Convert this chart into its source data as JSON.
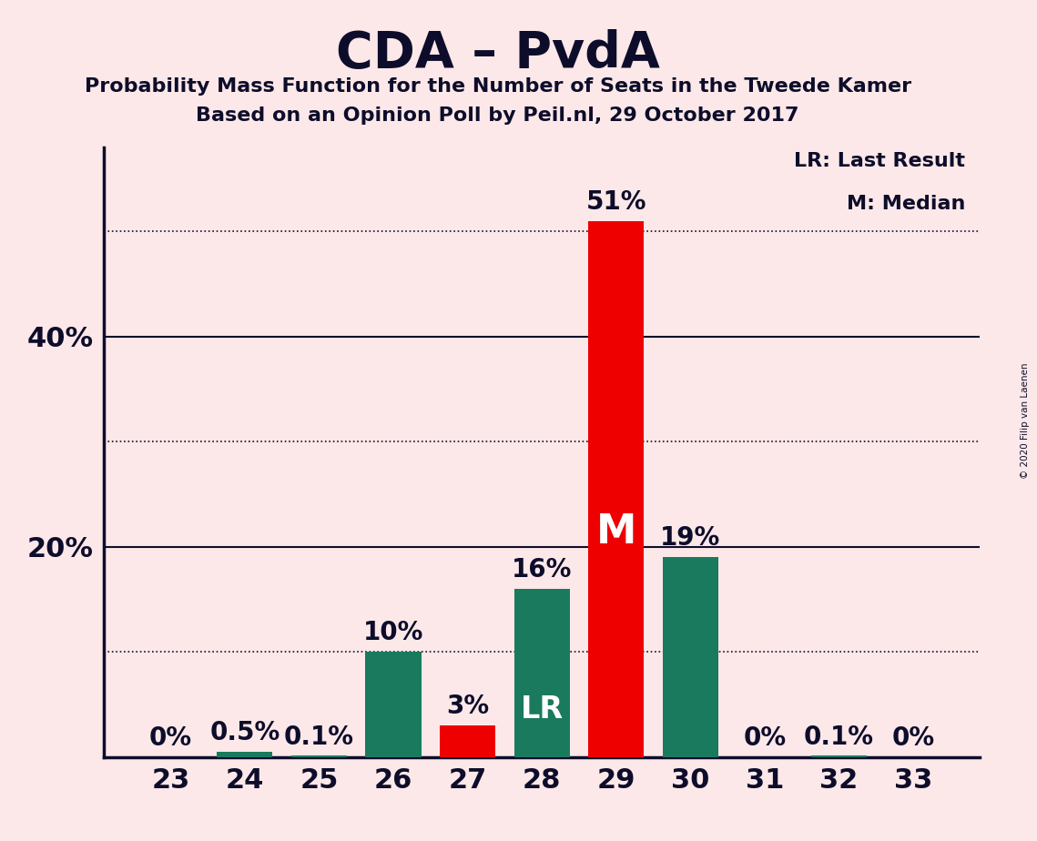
{
  "title": "CDA – PvdA",
  "subtitle1": "Probability Mass Function for the Number of Seats in the Tweede Kamer",
  "subtitle2": "Based on an Opinion Poll by Peil.nl, 29 October 2017",
  "copyright": "© 2020 Filip van Laenen",
  "seats": [
    23,
    24,
    25,
    26,
    27,
    28,
    29,
    30,
    31,
    32,
    33
  ],
  "values": [
    0.0,
    0.5,
    0.1,
    10.0,
    3.0,
    16.0,
    51.0,
    19.0,
    0.0,
    0.1,
    0.0
  ],
  "bar_colors": [
    "#1a7a5e",
    "#1a7a5e",
    "#1a7a5e",
    "#1a7a5e",
    "#ee0000",
    "#1a7a5e",
    "#ee0000",
    "#1a7a5e",
    "#1a7a5e",
    "#1a7a5e",
    "#1a7a5e"
  ],
  "labels": [
    "0%",
    "0.5%",
    "0.1%",
    "10%",
    "3%",
    "16%",
    "51%",
    "19%",
    "0%",
    "0.1%",
    "0%"
  ],
  "lr_seat": 28,
  "median_seat": 29,
  "background_color": "#fce8e8",
  "bar_green": "#1a7a5e",
  "bar_red": "#ee0000",
  "text_dark": "#0d0d2b",
  "yticks": [
    20,
    40
  ],
  "ymax": 58,
  "dotted_lines": [
    10,
    30,
    50
  ],
  "legend_lr": "LR: Last Result",
  "legend_m": "M: Median"
}
